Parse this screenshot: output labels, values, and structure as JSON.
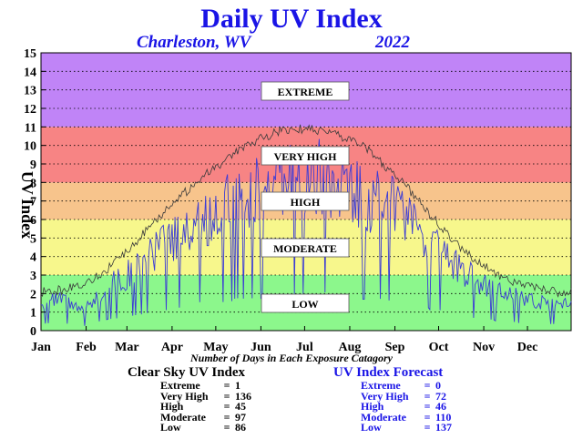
{
  "chart_data": {
    "type": "line",
    "title": "Daily UV Index",
    "location": "Charleston, WV",
    "year": "2022",
    "ylabel": "UV Index",
    "ylim": [
      0,
      15
    ],
    "yticks": [
      "0",
      "1",
      "2",
      "3",
      "4",
      "5",
      "6",
      "7",
      "8",
      "9",
      "10",
      "11",
      "12",
      "13",
      "14",
      "15"
    ],
    "xticks": [
      "Jan",
      "Feb",
      "Mar",
      "Apr",
      "May",
      "Jun",
      "Jul",
      "Aug",
      "Sep",
      "Oct",
      "Nov",
      "Dec"
    ],
    "grid": true,
    "bands": [
      {
        "label": "LOW",
        "from": 0,
        "to": 3,
        "color": "#8cf78c"
      },
      {
        "label": "MODERATE",
        "from": 3,
        "to": 6,
        "color": "#f7f78c"
      },
      {
        "label": "HIGH",
        "from": 6,
        "to": 8,
        "color": "#f7c48c"
      },
      {
        "label": "VERY HIGH",
        "from": 8,
        "to": 11,
        "color": "#f78484"
      },
      {
        "label": "EXTREME",
        "from": 11,
        "to": 15,
        "color": "#c084f7"
      }
    ],
    "series": [
      {
        "role": "clear-sky",
        "color": "#3a3a3a",
        "x": [
          1,
          15,
          30,
          45,
          60,
          75,
          90,
          105,
          120,
          135,
          150,
          165,
          172,
          180,
          195,
          210,
          225,
          240,
          255,
          270,
          285,
          300,
          315,
          330,
          345,
          360,
          365
        ],
        "values": [
          2.1,
          2.2,
          2.5,
          3.2,
          4.3,
          5.5,
          6.8,
          7.8,
          8.8,
          9.6,
          10.3,
          10.8,
          10.9,
          10.9,
          10.8,
          10.4,
          9.8,
          8.7,
          7.5,
          6.1,
          4.8,
          3.7,
          3.0,
          2.5,
          2.2,
          2.0,
          2.1
        ]
      },
      {
        "role": "forecast",
        "color": "#3b3bd6",
        "x": [
          1,
          15,
          30,
          45,
          60,
          75,
          90,
          105,
          120,
          135,
          150,
          165,
          180,
          195,
          210,
          225,
          240,
          255,
          270,
          285,
          300,
          315,
          330,
          345,
          360,
          365
        ],
        "values": [
          1.8,
          2.0,
          1.2,
          2.8,
          3.6,
          4.7,
          5.9,
          7.0,
          7.6,
          8.4,
          9.0,
          9.6,
          10.1,
          9.8,
          9.4,
          8.6,
          8.1,
          7.2,
          5.6,
          4.4,
          3.3,
          2.6,
          2.1,
          1.8,
          1.6,
          1.9
        ]
      }
    ]
  },
  "caption": "Number of Days in Each Exposure Catagory",
  "summary": {
    "clear_sky": {
      "title": "Clear Sky UV Index",
      "rows": [
        {
          "label": "Extreme",
          "eq": "=",
          "value": "1"
        },
        {
          "label": "Very High",
          "eq": "=",
          "value": "136"
        },
        {
          "label": "High",
          "eq": "=",
          "value": "45"
        },
        {
          "label": "Moderate",
          "eq": "=",
          "value": "97"
        },
        {
          "label": "Low",
          "eq": "=",
          "value": "86"
        }
      ]
    },
    "forecast": {
      "title": "UV Index Forecast",
      "rows": [
        {
          "label": "Extreme",
          "eq": "=",
          "value": "0"
        },
        {
          "label": "Very High",
          "eq": "=",
          "value": "72"
        },
        {
          "label": "High",
          "eq": "=",
          "value": "46"
        },
        {
          "label": "Moderate",
          "eq": "=",
          "value": "110"
        },
        {
          "label": "Low",
          "eq": "=",
          "value": "137"
        }
      ]
    }
  },
  "colors": {
    "title": "#1a14e6",
    "forecast_text": "#1a14e6",
    "clear_sky_text": "#000000"
  }
}
